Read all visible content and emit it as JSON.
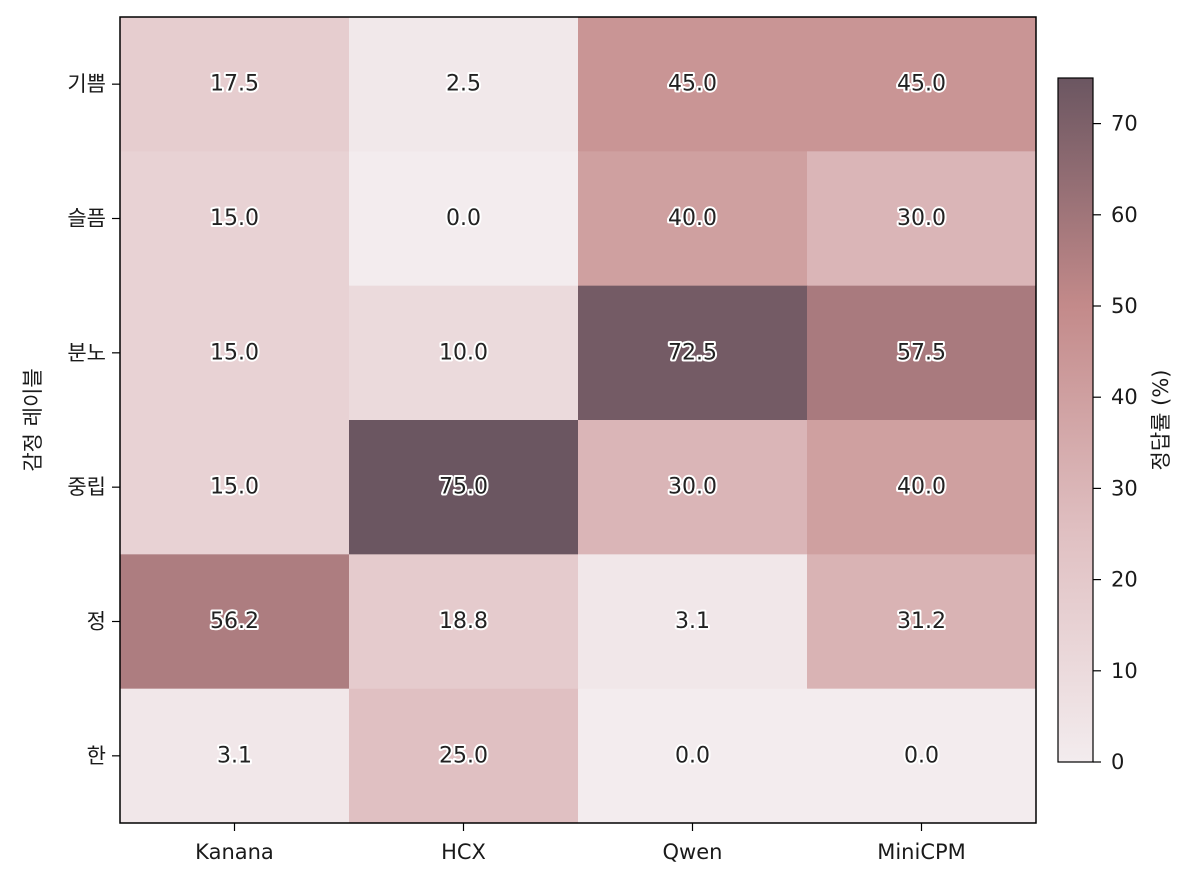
{
  "chart_data": {
    "type": "heatmap",
    "title": "",
    "x_categories": [
      "Kanana",
      "HCX",
      "Qwen",
      "MiniCPM"
    ],
    "y_categories": [
      "기쁨",
      "슬픔",
      "분노",
      "중립",
      "정",
      "한"
    ],
    "ylabel": "감정 레이블",
    "xlabel": "",
    "values": [
      [
        17.5,
        2.5,
        45.0,
        45.0
      ],
      [
        15.0,
        0.0,
        40.0,
        30.0
      ],
      [
        15.0,
        10.0,
        72.5,
        57.5
      ],
      [
        15.0,
        75.0,
        30.0,
        40.0
      ],
      [
        56.2,
        18.8,
        3.1,
        31.2
      ],
      [
        3.1,
        25.0,
        0.0,
        0.0
      ]
    ],
    "value_labels": [
      [
        "17.5",
        "2.5",
        "45.0",
        "45.0"
      ],
      [
        "15.0",
        "0.0",
        "40.0",
        "30.0"
      ],
      [
        "15.0",
        "10.0",
        "72.5",
        "57.5"
      ],
      [
        "15.0",
        "75.0",
        "30.0",
        "40.0"
      ],
      [
        "56.2",
        "18.8",
        "3.1",
        "31.2"
      ],
      [
        "3.1",
        "25.0",
        "0.0",
        "0.0"
      ]
    ],
    "colorbar": {
      "label": "정답률 (%)",
      "range": [
        0,
        75
      ],
      "ticks": [
        0,
        10,
        20,
        30,
        40,
        50,
        60,
        70
      ],
      "tick_labels": [
        "0",
        "10",
        "20",
        "30",
        "40",
        "50",
        "60",
        "70"
      ]
    },
    "colormap": [
      "#f3ecee",
      "#e0c0c2",
      "#c38a8a",
      "#6b5661"
    ]
  }
}
